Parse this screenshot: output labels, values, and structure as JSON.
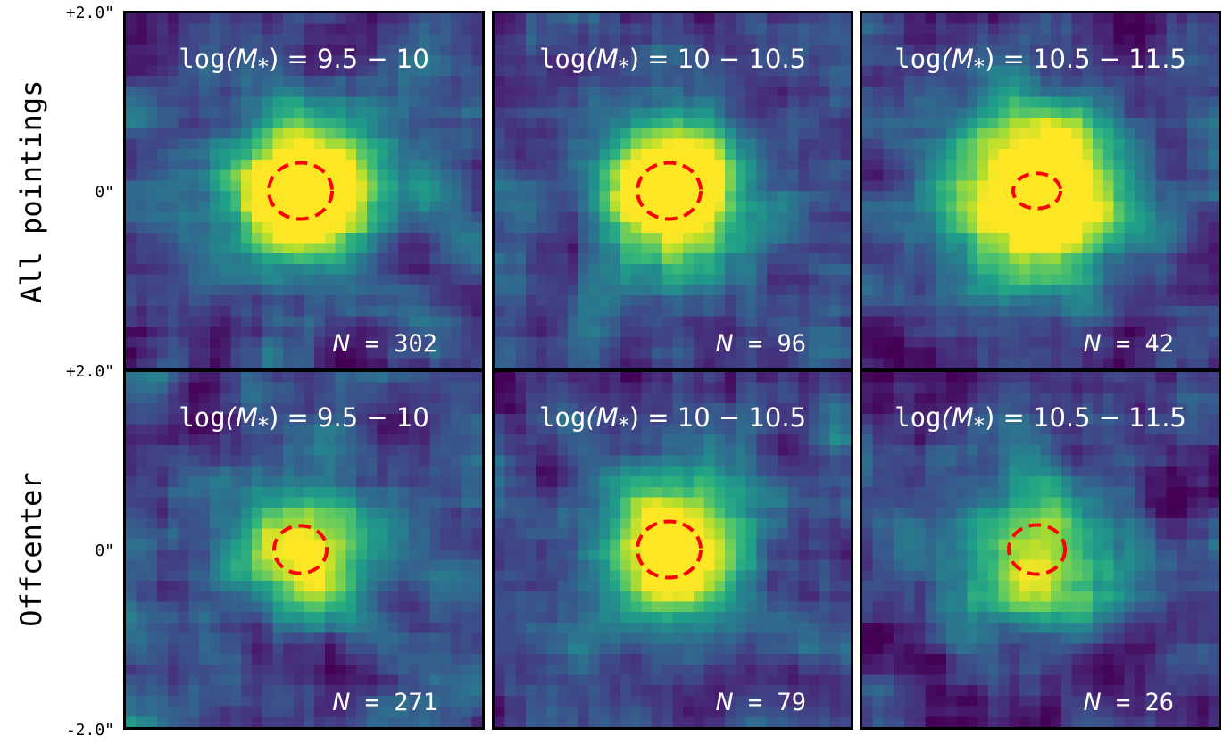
{
  "chart_data": {
    "type": "heatmap",
    "colormap": "viridis",
    "ellipse_color": "#ff0000",
    "row_labels": [
      "All pointings",
      "Offcenter"
    ],
    "y_ticks": [
      "+2.0\"",
      "0\"",
      "+2.0\"",
      "0\"",
      "-2.0\""
    ],
    "panels": [
      {
        "row": 0,
        "col": 0,
        "title_prefix": "log",
        "title_var": "(M",
        "title_sub": "*",
        "title_range": ") = 9.5 − 10",
        "n_label": "N",
        "n_value": "= 302",
        "peak": 1.0,
        "seed": 11
      },
      {
        "row": 0,
        "col": 1,
        "title_prefix": "log",
        "title_var": "(M",
        "title_sub": "*",
        "title_range": ") = 10 − 10.5",
        "n_label": "N",
        "n_value": "= 96",
        "peak": 0.95,
        "seed": 23
      },
      {
        "row": 0,
        "col": 2,
        "title_prefix": "log",
        "title_var": "(M",
        "title_sub": "*",
        "title_range": ") = 10.5 − 11.5",
        "n_label": "N",
        "n_value": "= 42",
        "peak": 1.0,
        "seed": 37
      },
      {
        "row": 1,
        "col": 0,
        "title_prefix": "log",
        "title_var": "(M",
        "title_sub": "*",
        "title_range": ") = 9.5 − 10",
        "n_label": "N",
        "n_value": "= 271",
        "peak": 0.6,
        "seed": 41
      },
      {
        "row": 1,
        "col": 1,
        "title_prefix": "log",
        "title_var": "(M",
        "title_sub": "*",
        "title_range": ") = 10 − 10.5",
        "n_label": "N",
        "n_value": "= 79",
        "peak": 0.85,
        "seed": 53
      },
      {
        "row": 1,
        "col": 2,
        "title_prefix": "log",
        "title_var": "(M",
        "title_sub": "*",
        "title_range": ") = 10.5 − 11.5",
        "n_label": "N",
        "n_value": "= 26",
        "peak": 0.55,
        "seed": 67
      }
    ]
  }
}
